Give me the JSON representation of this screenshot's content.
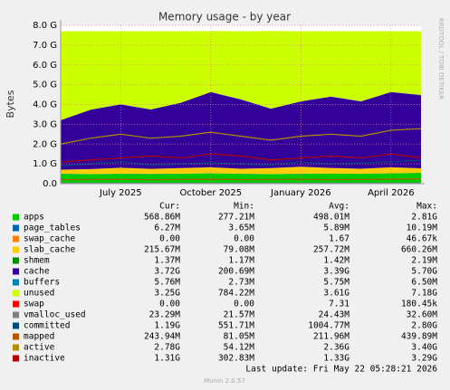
{
  "chart_data": {
    "type": "area",
    "title": "Memory usage - by year",
    "y_label": "Bytes",
    "side_text": "RRDTOOL / TOBI OETIKER",
    "footer": "Last update: Fri May 22 05:28:21 2026",
    "version": "Munin 2.0.57",
    "stat_headers": [
      "Cur:",
      "Min:",
      "Avg:",
      "Max:"
    ],
    "grid": true,
    "grid_color": "#e08080",
    "x": [
      "2025-05",
      "2025-06",
      "2025-07",
      "2025-08",
      "2025-09",
      "2025-10",
      "2025-11",
      "2025-12",
      "2026-01",
      "2026-02",
      "2026-03",
      "2026-04",
      "2026-05"
    ],
    "xlim": [
      "2025-05",
      "2026-05"
    ],
    "xticks": [
      {
        "value": "2025-07",
        "label": "July 2025"
      },
      {
        "value": "2025-10",
        "label": "October 2025"
      },
      {
        "value": "2026-01",
        "label": "January 2026"
      },
      {
        "value": "2026-04",
        "label": "April 2026"
      }
    ],
    "ylim": [
      0,
      8
    ],
    "yticks": [
      {
        "value": 0,
        "label": "0.0"
      },
      {
        "value": 1,
        "label": "1.0 G"
      },
      {
        "value": 2,
        "label": "2.0 G"
      },
      {
        "value": 3,
        "label": "3.0 G"
      },
      {
        "value": 4,
        "label": "4.0 G"
      },
      {
        "value": 5,
        "label": "5.0 G"
      },
      {
        "value": 6,
        "label": "6.0 G"
      },
      {
        "value": 7,
        "label": "7.0 G"
      },
      {
        "value": 8,
        "label": "8.0 G"
      }
    ],
    "series": [
      {
        "name": "apps",
        "color": "#00cc00",
        "style": "area",
        "stats": [
          "568.86M",
          "277.21M",
          "498.01M",
          "2.81G"
        ],
        "values": [
          0.5,
          0.48,
          0.5,
          0.49,
          0.5,
          0.52,
          0.5,
          0.48,
          0.5,
          0.51,
          0.5,
          0.52,
          0.55
        ]
      },
      {
        "name": "page_tables",
        "color": "#0066b3",
        "style": "area",
        "stats": [
          "6.27M",
          "3.65M",
          "5.89M",
          "10.19M"
        ],
        "values": [
          0.006,
          0.006,
          0.006,
          0.006,
          0.006,
          0.006,
          0.006,
          0.006,
          0.006,
          0.006,
          0.006,
          0.006,
          0.006
        ]
      },
      {
        "name": "swap_cache",
        "color": "#ff8000",
        "style": "area",
        "stats": [
          "0.00",
          "0.00",
          "1.67",
          "46.67k"
        ],
        "values": [
          0,
          0,
          0,
          0,
          0,
          0,
          0,
          0,
          0,
          0,
          0,
          0,
          0
        ]
      },
      {
        "name": "slab_cache",
        "color": "#ffcc00",
        "style": "area",
        "stats": [
          "215.67M",
          "79.08M",
          "257.72M",
          "660.26M"
        ],
        "values": [
          0.2,
          0.25,
          0.3,
          0.25,
          0.28,
          0.3,
          0.25,
          0.3,
          0.35,
          0.28,
          0.25,
          0.3,
          0.22
        ]
      },
      {
        "name": "shmem",
        "color": "#008f00",
        "style": "area",
        "stats": [
          "1.37M",
          "1.17M",
          "1.42M",
          "2.19M"
        ],
        "values": [
          0.001,
          0.001,
          0.001,
          0.001,
          0.001,
          0.001,
          0.001,
          0.001,
          0.001,
          0.001,
          0.001,
          0.001,
          0.001
        ]
      },
      {
        "name": "cache",
        "color": "#330099",
        "style": "area",
        "stats": [
          "3.72G",
          "200.69M",
          "3.39G",
          "5.70G"
        ],
        "values": [
          2.5,
          3.0,
          3.2,
          3.0,
          3.3,
          3.8,
          3.5,
          3.0,
          3.3,
          3.6,
          3.4,
          3.8,
          3.7
        ]
      },
      {
        "name": "buffers",
        "color": "#0080c0",
        "style": "area",
        "stats": [
          "5.76M",
          "2.73M",
          "5.75M",
          "6.50M"
        ],
        "values": [
          0.006,
          0.006,
          0.006,
          0.006,
          0.006,
          0.006,
          0.006,
          0.006,
          0.006,
          0.006,
          0.006,
          0.006,
          0.006
        ]
      },
      {
        "name": "unused",
        "color": "#ccff00",
        "style": "area",
        "stats": [
          "3.25G",
          "784.22M",
          "3.61G",
          "7.18G"
        ],
        "values": [
          4.49,
          3.96,
          3.69,
          3.95,
          3.61,
          3.08,
          3.44,
          3.92,
          3.54,
          3.3,
          3.54,
          3.07,
          3.22
        ]
      },
      {
        "name": "swap",
        "color": "#ff0000",
        "style": "area",
        "stats": [
          "0.00",
          "0.00",
          "7.31",
          "180.45k"
        ],
        "values": [
          0,
          0,
          0,
          0,
          0,
          0,
          0,
          0,
          0,
          0,
          0,
          0,
          0
        ]
      },
      {
        "name": "vmalloc_used",
        "color": "#808080",
        "style": "line",
        "stats": [
          "23.29M",
          "21.57M",
          "24.43M",
          "32.60M"
        ],
        "values": [
          0.023,
          0.024,
          0.024,
          0.025,
          0.024,
          0.024,
          0.025,
          0.024,
          0.024,
          0.025,
          0.024,
          0.024,
          0.023
        ]
      },
      {
        "name": "committed",
        "color": "#00487d",
        "style": "line",
        "stats": [
          "1.19G",
          "551.71M",
          "1004.77M",
          "2.80G"
        ],
        "values": [
          0.9,
          1.0,
          1.1,
          0.95,
          1.0,
          1.05,
          1.0,
          0.95,
          1.1,
          1.0,
          1.05,
          1.1,
          1.19
        ]
      },
      {
        "name": "mapped",
        "color": "#b35a00",
        "style": "line",
        "stats": [
          "243.94M",
          "81.05M",
          "211.96M",
          "439.89M"
        ],
        "values": [
          0.2,
          0.21,
          0.22,
          0.2,
          0.21,
          0.23,
          0.2,
          0.21,
          0.22,
          0.2,
          0.21,
          0.23,
          0.24
        ]
      },
      {
        "name": "active",
        "color": "#b38f00",
        "style": "line",
        "stats": [
          "2.78G",
          "54.12M",
          "2.36G",
          "3.40G"
        ],
        "values": [
          2.0,
          2.3,
          2.5,
          2.3,
          2.4,
          2.6,
          2.4,
          2.2,
          2.4,
          2.5,
          2.4,
          2.7,
          2.78
        ]
      },
      {
        "name": "inactive",
        "color": "#b30000",
        "style": "line",
        "stats": [
          "1.31G",
          "302.83M",
          "1.33G",
          "3.29G"
        ],
        "values": [
          1.1,
          1.2,
          1.3,
          1.4,
          1.3,
          1.5,
          1.4,
          1.2,
          1.3,
          1.4,
          1.3,
          1.5,
          1.31
        ]
      }
    ]
  }
}
